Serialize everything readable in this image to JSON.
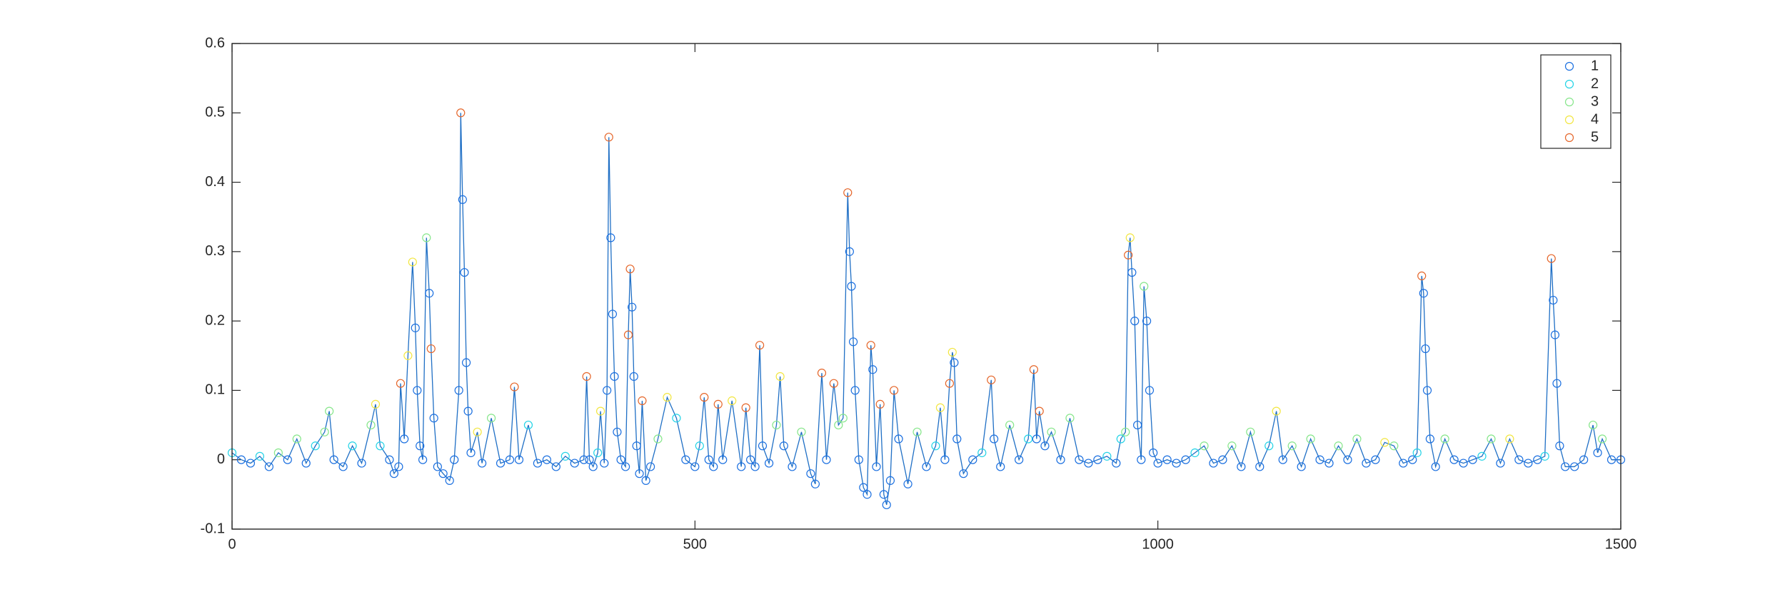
{
  "chart_data": {
    "type": "line",
    "x": [
      0,
      10,
      20,
      30,
      40,
      50,
      60,
      70,
      80,
      90,
      100,
      105,
      110,
      120,
      130,
      140,
      150,
      155,
      160,
      170,
      175,
      180,
      182,
      186,
      190,
      195,
      198,
      200,
      203,
      206,
      210,
      213,
      215,
      218,
      222,
      228,
      235,
      240,
      245,
      247,
      249,
      251,
      253,
      255,
      258,
      265,
      270,
      280,
      290,
      300,
      305,
      310,
      320,
      330,
      340,
      350,
      360,
      370,
      380,
      383,
      386,
      390,
      395,
      398,
      402,
      405,
      407,
      409,
      411,
      413,
      416,
      420,
      425,
      428,
      430,
      432,
      434,
      437,
      440,
      443,
      447,
      452,
      460,
      470,
      480,
      490,
      500,
      505,
      510,
      515,
      520,
      525,
      530,
      540,
      550,
      555,
      560,
      565,
      570,
      573,
      580,
      588,
      592,
      596,
      605,
      615,
      625,
      630,
      637,
      642,
      650,
      655,
      660,
      665,
      667,
      669,
      671,
      673,
      677,
      682,
      686,
      690,
      692,
      696,
      700,
      704,
      707,
      711,
      715,
      720,
      730,
      740,
      750,
      760,
      765,
      770,
      775,
      778,
      780,
      783,
      790,
      800,
      810,
      820,
      823,
      830,
      840,
      850,
      860,
      866,
      869,
      872,
      878,
      885,
      895,
      905,
      915,
      925,
      935,
      945,
      955,
      960,
      965,
      968,
      970,
      972,
      975,
      978,
      982,
      985,
      988,
      991,
      995,
      1000,
      1010,
      1020,
      1030,
      1040,
      1050,
      1060,
      1070,
      1080,
      1090,
      1100,
      1110,
      1120,
      1128,
      1135,
      1145,
      1155,
      1165,
      1175,
      1185,
      1195,
      1205,
      1215,
      1225,
      1235,
      1245,
      1255,
      1265,
      1275,
      1280,
      1285,
      1287,
      1289,
      1291,
      1294,
      1300,
      1310,
      1320,
      1330,
      1340,
      1350,
      1360,
      1370,
      1380,
      1390,
      1400,
      1410,
      1418,
      1425,
      1427,
      1429,
      1431,
      1434,
      1440,
      1450,
      1460,
      1470,
      1475,
      1480,
      1490,
      1500
    ],
    "values": [
      0.01,
      0,
      -0.005,
      0.005,
      -0.01,
      0.01,
      0,
      0.03,
      -0.005,
      0.02,
      0.04,
      0.07,
      0,
      -0.01,
      0.02,
      -0.005,
      0.05,
      0.08,
      0.02,
      0,
      -0.02,
      -0.01,
      0.11,
      0.03,
      0.15,
      0.285,
      0.19,
      0.1,
      0.02,
      0,
      0.32,
      0.24,
      0.16,
      0.06,
      -0.01,
      -0.02,
      -0.03,
      0,
      0.1,
      0.5,
      0.375,
      0.27,
      0.14,
      0.07,
      0.01,
      0.04,
      -0.005,
      0.06,
      -0.005,
      0,
      0.105,
      0,
      0.05,
      -0.005,
      0,
      -0.01,
      0.005,
      -0.005,
      0,
      0.12,
      0,
      -0.01,
      0.01,
      0.07,
      -0.005,
      0.1,
      0.465,
      0.32,
      0.21,
      0.12,
      0.04,
      0,
      -0.01,
      0.18,
      0.275,
      0.22,
      0.12,
      0.02,
      -0.02,
      0.085,
      -0.03,
      -0.01,
      0.03,
      0.09,
      0.06,
      0,
      -0.01,
      0.02,
      0.09,
      0,
      -0.01,
      0.08,
      0,
      0.085,
      -0.01,
      0.075,
      0,
      -0.01,
      0.165,
      0.02,
      -0.005,
      0.05,
      0.12,
      0.02,
      -0.01,
      0.04,
      -0.02,
      -0.035,
      0.125,
      0,
      0.11,
      0.05,
      0.06,
      0.385,
      0.3,
      0.25,
      0.17,
      0.1,
      0,
      -0.04,
      -0.05,
      0.165,
      0.13,
      -0.01,
      0.08,
      -0.05,
      -0.065,
      -0.03,
      0.1,
      0.03,
      -0.035,
      0.04,
      -0.01,
      0.02,
      0.075,
      0,
      0.11,
      0.155,
      0.14,
      0.03,
      -0.02,
      0,
      0.01,
      0.115,
      0.03,
      -0.01,
      0.05,
      0,
      0.03,
      0.13,
      0.03,
      0.07,
      0.02,
      0.04,
      0,
      0.06,
      0,
      -0.005,
      0,
      0.005,
      -0.005,
      0.03,
      0.04,
      0.295,
      0.32,
      0.27,
      0.2,
      0.05,
      0,
      0.25,
      0.2,
      0.1,
      0.01,
      -0.005,
      0,
      -0.005,
      0,
      0.01,
      0.02,
      -0.005,
      0,
      0.02,
      -0.01,
      0.04,
      -0.01,
      0.02,
      0.07,
      0,
      0.02,
      -0.01,
      0.03,
      0,
      -0.005,
      0.02,
      0,
      0.03,
      -0.005,
      0,
      0.025,
      0.02,
      -0.005,
      0,
      0.01,
      0.265,
      0.24,
      0.16,
      0.1,
      0.03,
      -0.01,
      0.03,
      0,
      -0.005,
      0,
      0.005,
      0.03,
      -0.005,
      0.03,
      0,
      -0.005,
      0,
      0.005,
      0.29,
      0.23,
      0.18,
      0.11,
      0.02,
      -0.01,
      -0.01,
      0,
      0.05,
      0.01,
      0.03,
      0,
      0
    ],
    "cluster": [
      1,
      0,
      0,
      1,
      0,
      2,
      0,
      2,
      0,
      1,
      2,
      2,
      0,
      0,
      1,
      0,
      2,
      3,
      1,
      0,
      0,
      0,
      4,
      0,
      3,
      3,
      0,
      0,
      0,
      0,
      2,
      0,
      4,
      0,
      0,
      0,
      0,
      0,
      0,
      4,
      0,
      0,
      0,
      0,
      0,
      3,
      0,
      2,
      0,
      0,
      4,
      0,
      1,
      0,
      0,
      0,
      1,
      0,
      0,
      4,
      0,
      0,
      1,
      3,
      0,
      0,
      4,
      0,
      0,
      0,
      0,
      0,
      0,
      4,
      4,
      0,
      0,
      0,
      0,
      4,
      0,
      0,
      2,
      3,
      1,
      0,
      0,
      1,
      4,
      0,
      0,
      4,
      0,
      3,
      0,
      4,
      0,
      0,
      4,
      0,
      0,
      2,
      3,
      0,
      0,
      2,
      0,
      0,
      4,
      0,
      4,
      2,
      2,
      4,
      0,
      0,
      0,
      0,
      0,
      0,
      0,
      4,
      0,
      0,
      4,
      0,
      0,
      0,
      4,
      0,
      0,
      2,
      0,
      1,
      3,
      0,
      4,
      3,
      0,
      0,
      0,
      0,
      1,
      4,
      0,
      0,
      2,
      0,
      1,
      4,
      0,
      4,
      0,
      2,
      0,
      2,
      0,
      0,
      0,
      1,
      0,
      1,
      2,
      4,
      3,
      0,
      0,
      0,
      0,
      2,
      0,
      0,
      0,
      0,
      0,
      0,
      0,
      1,
      2,
      0,
      0,
      2,
      0,
      2,
      0,
      1,
      3,
      0,
      2,
      0,
      2,
      0,
      0,
      2,
      0,
      2,
      0,
      0,
      3,
      2,
      0,
      0,
      1,
      4,
      0,
      0,
      0,
      0,
      0,
      2,
      0,
      0,
      0,
      1,
      2,
      0,
      3,
      0,
      0,
      0,
      1,
      4,
      0,
      0,
      0,
      0,
      0,
      0,
      0,
      2,
      0,
      2,
      0,
      0
    ],
    "line_color": "#1f6fc5",
    "series": [
      {
        "name": "1",
        "color": "#1a6fe0"
      },
      {
        "name": "2",
        "color": "#22d3e6"
      },
      {
        "name": "3",
        "color": "#86e68a"
      },
      {
        "name": "4",
        "color": "#f2e640"
      },
      {
        "name": "5",
        "color": "#e5662a"
      }
    ],
    "xlim": [
      0,
      1500
    ],
    "xticks": [
      0,
      500,
      1000,
      1500
    ],
    "ylim": [
      -0.1,
      0.6
    ],
    "yticks": [
      -0.1,
      0,
      0.1,
      0.2,
      0.3,
      0.4,
      0.5,
      0.6
    ],
    "grid": false,
    "legend": "northeast"
  }
}
